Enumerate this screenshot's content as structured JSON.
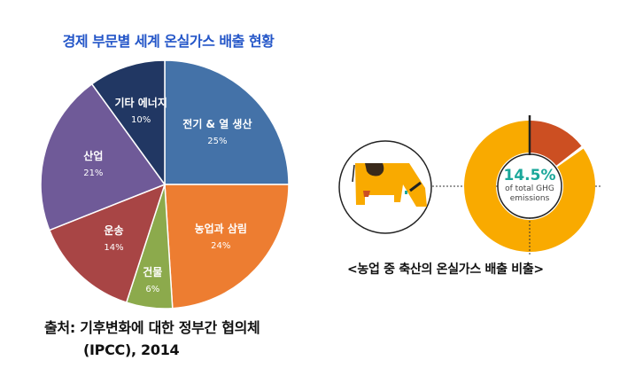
{
  "title": "경제 부문별  세계 온실가스 배출 현황",
  "source_line1": "출처: 기후변화에 대한 정부간 협의체",
  "source_line2": "(IPCC), 2014",
  "chart_data": {
    "type": "pie",
    "title": "경제 부문별  세계 온실가스 배출 현황",
    "start": "top, clockwise",
    "slices": [
      {
        "label": "전기 & 열 생산",
        "value": 25,
        "value_label": "25%",
        "color": "#4472a8"
      },
      {
        "label": "농업과 삼림",
        "value": 24,
        "value_label": "24%",
        "color": "#ed7d31"
      },
      {
        "label": "건물",
        "value": 6,
        "value_label": "6%",
        "color": "#8caa4c"
      },
      {
        "label": "운송",
        "value": 14,
        "value_label": "14%",
        "color": "#a84545"
      },
      {
        "label": "산업",
        "value": 21,
        "value_label": "21%",
        "color": "#6f5a98"
      },
      {
        "label": "기타 에너지",
        "value": 10,
        "value_label": "10%",
        "color": "#213763"
      }
    ]
  },
  "livestock": {
    "type": "donut",
    "value": 14.5,
    "value_label": "14.5%",
    "sub_line1": "of total GHG",
    "sub_line2": "emissions",
    "highlight_color": "#cc4f22",
    "base_color": "#f9aa00",
    "value_color": "#1aa79a",
    "icon": "cow-icon",
    "caption": "<농업 중 축산의 온실가스 배출 비출>"
  }
}
